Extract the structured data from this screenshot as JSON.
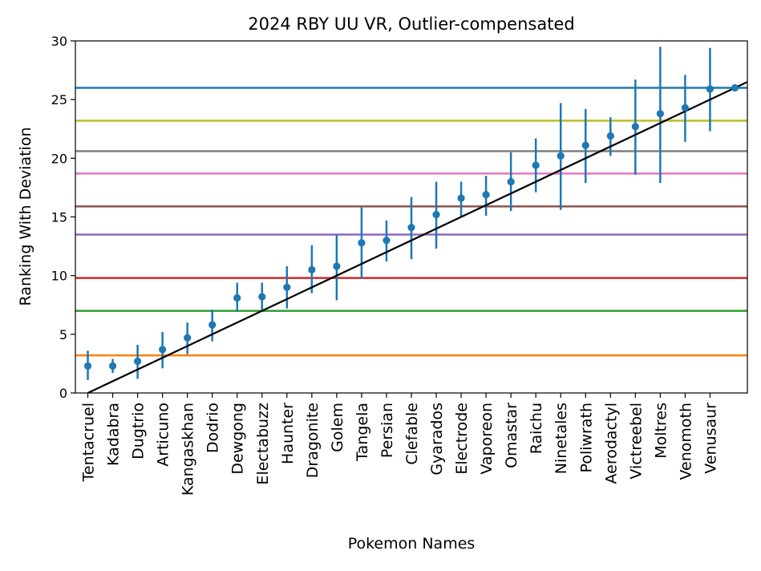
{
  "chart_data": {
    "type": "scatter",
    "title": "2024 RBY UU VR, Outlier-compensated",
    "xlabel": "Pokemon Names",
    "ylabel": "Ranking With Deviation",
    "ylim": [
      0,
      30
    ],
    "yticks": [
      0,
      5,
      10,
      15,
      20,
      25,
      30
    ],
    "grid": false,
    "legend": "none",
    "point_color": "#1f77b4",
    "categories": [
      "Tentacruel",
      "Kadabra",
      "Dugtrio",
      "Articuno",
      "Kangaskhan",
      "Dodrio",
      "Dewgong",
      "Electabuzz",
      "Haunter",
      "Dragonite",
      "Golem",
      "Tangela",
      "Persian",
      "Clefable",
      "Gyarados",
      "Electrode",
      "Vaporeon",
      "Omastar",
      "Raichu",
      "Ninetales",
      "Poliwrath",
      "Aerodactyl",
      "Victreebel",
      "Moltres",
      "Venomoth",
      "Venusaur"
    ],
    "values": [
      2.3,
      2.3,
      2.7,
      3.7,
      4.7,
      5.8,
      8.1,
      8.2,
      9.0,
      10.5,
      10.8,
      12.8,
      13.0,
      14.1,
      15.2,
      16.6,
      16.9,
      18.0,
      19.4,
      20.2,
      21.1,
      21.9,
      22.7,
      23.8,
      24.3,
      25.9
    ],
    "error_low": [
      1.1,
      1.7,
      1.2,
      2.1,
      3.3,
      4.4,
      6.9,
      7.1,
      7.2,
      8.5,
      7.9,
      9.7,
      11.2,
      11.4,
      12.3,
      15.0,
      15.1,
      15.5,
      17.1,
      15.6,
      17.9,
      20.2,
      18.6,
      17.9,
      21.4,
      22.3
    ],
    "error_high": [
      3.6,
      2.9,
      4.1,
      5.2,
      6.0,
      7.1,
      9.4,
      9.4,
      10.8,
      12.6,
      13.5,
      15.8,
      14.7,
      16.7,
      18.0,
      18.0,
      18.5,
      20.5,
      21.7,
      24.7,
      24.2,
      23.5,
      26.7,
      29.5,
      27.1,
      29.4
    ],
    "extra_point": {
      "x": 26,
      "y": 26.0
    },
    "trend_line": {
      "x": [
        0,
        27
      ],
      "y": [
        0,
        27
      ],
      "color": "#000000"
    },
    "hlines": [
      {
        "y": 3.2,
        "color": "#ff7f0e"
      },
      {
        "y": 7.0,
        "color": "#2ca02c"
      },
      {
        "y": 9.8,
        "color": "#d62728"
      },
      {
        "y": 13.5,
        "color": "#9467bd"
      },
      {
        "y": 15.9,
        "color": "#8c564b"
      },
      {
        "y": 18.7,
        "color": "#e377c2"
      },
      {
        "y": 20.6,
        "color": "#7f7f7f"
      },
      {
        "y": 23.2,
        "color": "#bcbd22"
      },
      {
        "y": 26.0,
        "color": "#1f77b4"
      }
    ]
  }
}
